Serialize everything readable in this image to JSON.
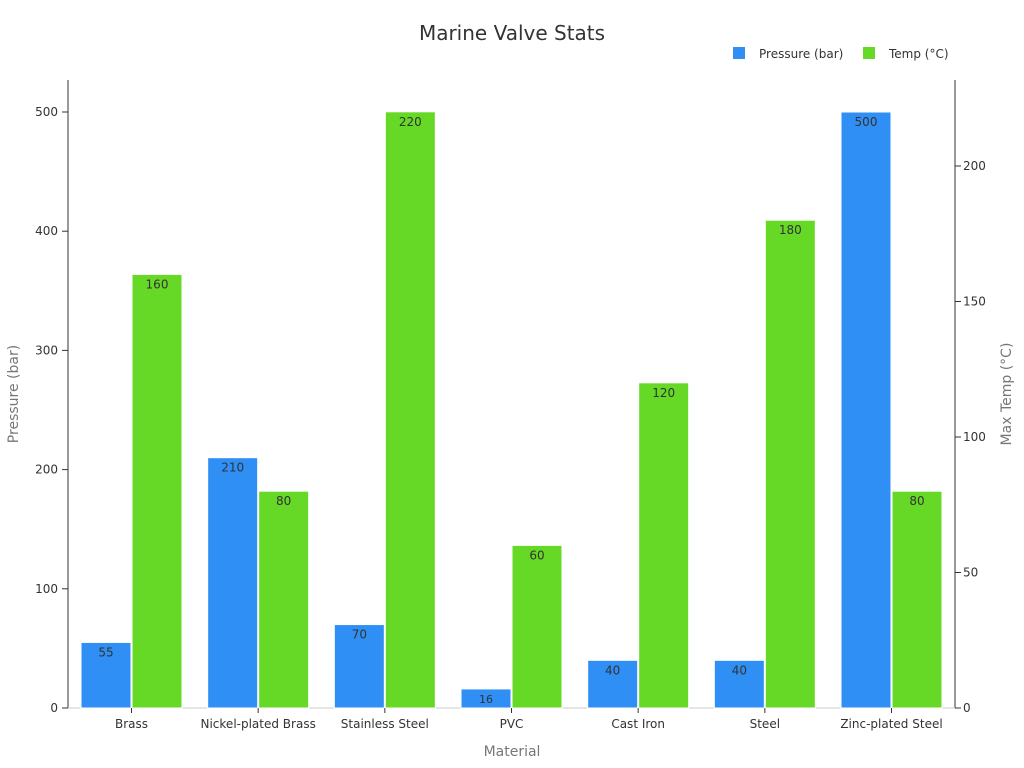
{
  "chart_data": {
    "type": "bar",
    "title": "Marine Valve Stats",
    "xlabel": "Material",
    "ylabel_left": "Pressure (bar)",
    "ylabel_right": "Max Temp (°C)",
    "categories": [
      "Brass",
      "Nickel-plated Brass",
      "Stainless Steel",
      "PVC",
      "Cast Iron",
      "Steel",
      "Zinc-plated Steel"
    ],
    "series": [
      {
        "name": "Pressure (bar)",
        "axis": "left",
        "color": "#2f8ff5",
        "values": [
          55,
          210,
          70,
          16,
          40,
          40,
          500
        ]
      },
      {
        "name": "Temp (°C)",
        "axis": "right",
        "color": "#66d927",
        "values": [
          160,
          80,
          220,
          60,
          120,
          180,
          80
        ]
      }
    ],
    "y_left": {
      "range": [
        0,
        525
      ],
      "ticks": [
        0,
        100,
        200,
        300,
        400,
        500
      ]
    },
    "y_right": {
      "range": [
        0,
        230
      ],
      "ticks": [
        0,
        50,
        100,
        150,
        200
      ]
    },
    "grid": false,
    "legend_position": "top-right"
  }
}
